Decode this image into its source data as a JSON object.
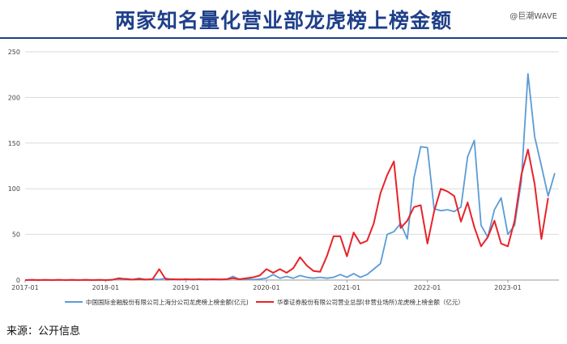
{
  "header": {
    "title": "两家知名量化营业部龙虎榜上榜金额",
    "watermark": "@巨潮WAVE"
  },
  "footer": {
    "source": "来源：公开信息"
  },
  "chart_data": {
    "type": "line",
    "title": "两家知名量化营业部龙虎榜上榜金额",
    "ylim": [
      0,
      250
    ],
    "yticks": [
      0,
      50,
      100,
      150,
      200,
      250
    ],
    "x_tick_labels": [
      "2017-01",
      "2018-01",
      "2019-01",
      "2020-01",
      "2021-01",
      "2022-01",
      "2023-01"
    ],
    "x_tick_months": [
      0,
      12,
      24,
      36,
      48,
      60,
      72
    ],
    "x_range_months": [
      0,
      78
    ],
    "grid": "horizontal",
    "legend_position": "bottom",
    "series": [
      {
        "name": "中国国际金融股份有限公司上海分公司龙虎榜上榜金额(亿元)",
        "color": "#5b9bd5",
        "points": [
          [
            0,
            0
          ],
          [
            1,
            0.3
          ],
          [
            2,
            0
          ],
          [
            3,
            0.2
          ],
          [
            4,
            0
          ],
          [
            5,
            0.3
          ],
          [
            6,
            0
          ],
          [
            7,
            0.2
          ],
          [
            8,
            0
          ],
          [
            9,
            0.3
          ],
          [
            10,
            0
          ],
          [
            11,
            0.2
          ],
          [
            12,
            0
          ],
          [
            13,
            0.5
          ],
          [
            14,
            1
          ],
          [
            15,
            1.5
          ],
          [
            16,
            0.5
          ],
          [
            17,
            2
          ],
          [
            18,
            0.5
          ],
          [
            19,
            1
          ],
          [
            20,
            0.5
          ],
          [
            21,
            2
          ],
          [
            22,
            0.5
          ],
          [
            23,
            1
          ],
          [
            24,
            0.5
          ],
          [
            25,
            1
          ],
          [
            26,
            0.5
          ],
          [
            27,
            1
          ],
          [
            28,
            0.5
          ],
          [
            29,
            1
          ],
          [
            30,
            0.5
          ],
          [
            31,
            4
          ],
          [
            32,
            0.5
          ],
          [
            33,
            1
          ],
          [
            34,
            0.5
          ],
          [
            35,
            1
          ],
          [
            36,
            2
          ],
          [
            37,
            6
          ],
          [
            38,
            2
          ],
          [
            39,
            4
          ],
          [
            40,
            2
          ],
          [
            41,
            5
          ],
          [
            42,
            3
          ],
          [
            43,
            2
          ],
          [
            44,
            3
          ],
          [
            45,
            2
          ],
          [
            46,
            3
          ],
          [
            47,
            6
          ],
          [
            48,
            3
          ],
          [
            49,
            7
          ],
          [
            50,
            3
          ],
          [
            51,
            6
          ],
          [
            52,
            12
          ],
          [
            53,
            18
          ],
          [
            54,
            50
          ],
          [
            55,
            53
          ],
          [
            56,
            62
          ],
          [
            57,
            45
          ],
          [
            58,
            112
          ],
          [
            59,
            146
          ],
          [
            60,
            145
          ],
          [
            61,
            78
          ],
          [
            62,
            76
          ],
          [
            63,
            77
          ],
          [
            64,
            75
          ],
          [
            65,
            80
          ],
          [
            66,
            135
          ],
          [
            67,
            153
          ],
          [
            68,
            60
          ],
          [
            69,
            47
          ],
          [
            70,
            77
          ],
          [
            71,
            90
          ],
          [
            72,
            50
          ],
          [
            73,
            60
          ],
          [
            74,
            108
          ],
          [
            75,
            226
          ],
          [
            76,
            157
          ],
          [
            77,
            125
          ],
          [
            78,
            92
          ],
          [
            79,
            117
          ]
        ]
      },
      {
        "name": "华泰证券股份有限公司营业总部(非营业场所)龙虎榜上榜金额（亿元）",
        "color": "#e8232a",
        "points": [
          [
            0,
            0
          ],
          [
            1,
            0.2
          ],
          [
            2,
            0
          ],
          [
            3,
            0.3
          ],
          [
            4,
            0
          ],
          [
            5,
            0.2
          ],
          [
            6,
            0
          ],
          [
            7,
            0.3
          ],
          [
            8,
            0
          ],
          [
            9,
            0.2
          ],
          [
            10,
            0
          ],
          [
            11,
            0.3
          ],
          [
            12,
            0
          ],
          [
            13,
            0.3
          ],
          [
            14,
            2
          ],
          [
            15,
            1
          ],
          [
            16,
            0.5
          ],
          [
            17,
            1
          ],
          [
            18,
            0.5
          ],
          [
            19,
            1
          ],
          [
            20,
            12
          ],
          [
            21,
            0.5
          ],
          [
            22,
            1
          ],
          [
            23,
            0.5
          ],
          [
            24,
            1
          ],
          [
            25,
            0.5
          ],
          [
            26,
            1
          ],
          [
            27,
            0.5
          ],
          [
            28,
            1
          ],
          [
            29,
            0.5
          ],
          [
            30,
            1
          ],
          [
            31,
            2
          ],
          [
            32,
            1
          ],
          [
            33,
            2
          ],
          [
            34,
            3
          ],
          [
            35,
            5
          ],
          [
            36,
            12
          ],
          [
            37,
            8
          ],
          [
            38,
            12
          ],
          [
            39,
            8
          ],
          [
            40,
            13
          ],
          [
            41,
            25
          ],
          [
            42,
            16
          ],
          [
            43,
            10
          ],
          [
            44,
            9
          ],
          [
            45,
            26
          ],
          [
            46,
            48
          ],
          [
            47,
            48
          ],
          [
            48,
            26
          ],
          [
            49,
            52
          ],
          [
            50,
            40
          ],
          [
            51,
            43
          ],
          [
            52,
            62
          ],
          [
            53,
            95
          ],
          [
            54,
            115
          ],
          [
            55,
            130
          ],
          [
            56,
            57
          ],
          [
            57,
            65
          ],
          [
            58,
            80
          ],
          [
            59,
            82
          ],
          [
            60,
            40
          ],
          [
            61,
            75
          ],
          [
            62,
            100
          ],
          [
            63,
            97
          ],
          [
            64,
            92
          ],
          [
            65,
            64
          ],
          [
            66,
            85
          ],
          [
            67,
            58
          ],
          [
            68,
            37
          ],
          [
            69,
            47
          ],
          [
            70,
            65
          ],
          [
            71,
            40
          ],
          [
            72,
            37
          ],
          [
            73,
            65
          ],
          [
            74,
            115
          ],
          [
            75,
            143
          ],
          [
            76,
            105
          ],
          [
            77,
            45
          ],
          [
            78,
            90
          ]
        ]
      }
    ]
  }
}
